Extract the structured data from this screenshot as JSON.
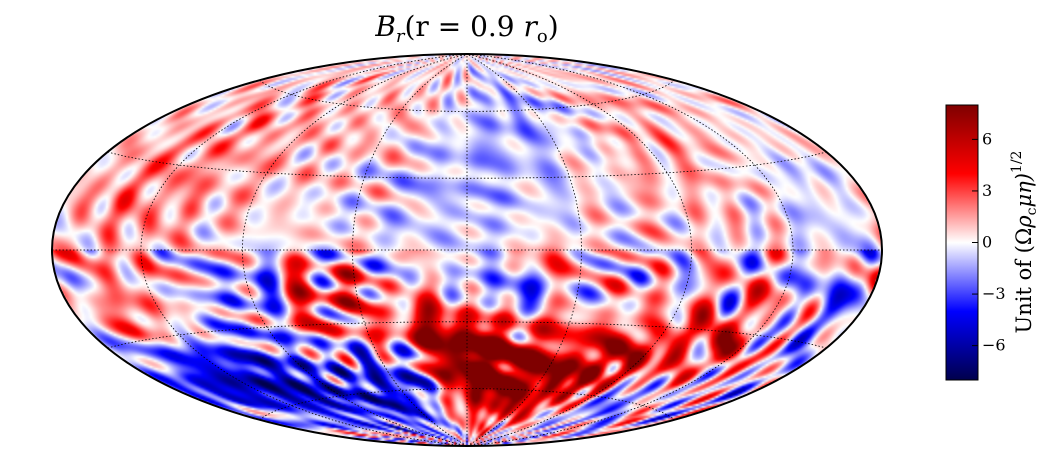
{
  "chart_data": {
    "type": "heatmap",
    "projection": "Hammer-Aitoff (all-sky)",
    "title": "B_r(r = 0.9 r_o)",
    "title_parts": {
      "main": "B",
      "sub": "r",
      "expr": "(r = 0.9 ",
      "rvar": "r",
      "rsub": "o",
      "close": ")"
    },
    "colormap": "seismic (blue-white-red)",
    "colormap_stops": [
      "#00004c",
      "#0000ff",
      "#ffffff",
      "#ff0000",
      "#7f0000"
    ],
    "colorbar": {
      "ticks": [
        6,
        3,
        0,
        -3,
        -6
      ],
      "tick_labels": [
        "6",
        "3",
        "0",
        "−3",
        "−6"
      ],
      "range": [
        -8,
        8
      ],
      "label": "Unit of (Ωρcμη)^1/2",
      "label_parts": {
        "unit": "Unit of (",
        "omega": "Ω",
        "rho": "ρ",
        "rho_sub": "c",
        "mueta": "μη)",
        "power": "1/2"
      }
    },
    "grid": true,
    "grid_style": "dotted",
    "meridians_deg": [
      -135,
      -90,
      -45,
      0,
      45,
      90,
      135
    ],
    "parallels_deg": [
      -60,
      -30,
      0,
      30,
      60
    ],
    "field_features": [
      {
        "lon": 0,
        "lat": -45,
        "value": 7,
        "sigma": 12
      },
      {
        "lon": 15,
        "lat": -55,
        "value": 6,
        "sigma": 14
      },
      {
        "lon": 45,
        "lat": -55,
        "value": 6.5,
        "sigma": 15
      },
      {
        "lon": 80,
        "lat": -45,
        "value": 5.5,
        "sigma": 12
      },
      {
        "lon": 120,
        "lat": -35,
        "value": 4.5,
        "sigma": 12
      },
      {
        "lon": -20,
        "lat": -35,
        "value": 5,
        "sigma": 10
      },
      {
        "lon": -60,
        "lat": -20,
        "value": 4,
        "sigma": 10
      },
      {
        "lon": -150,
        "lat": -25,
        "value": 4,
        "sigma": 10
      },
      {
        "lon": -110,
        "lat": -55,
        "value": -6.5,
        "sigma": 14
      },
      {
        "lon": -150,
        "lat": -45,
        "value": -6,
        "sigma": 12
      },
      {
        "lon": -60,
        "lat": -65,
        "value": -5.5,
        "sigma": 12
      },
      {
        "lon": -30,
        "lat": -50,
        "value": -4.5,
        "sigma": 10
      },
      {
        "lon": 20,
        "lat": -15,
        "value": -4,
        "sigma": 8
      },
      {
        "lon": 110,
        "lat": -60,
        "value": -3.5,
        "sigma": 10
      },
      {
        "lon": -90,
        "lat": -15,
        "value": -3,
        "sigma": 8
      },
      {
        "lon": 30,
        "lat": -5,
        "value": 4.5,
        "sigma": 6
      },
      {
        "lon": 160,
        "lat": -20,
        "value": -2.5,
        "sigma": 9
      },
      {
        "lon": -120,
        "lat": 40,
        "value": 1.8,
        "sigma": 25
      },
      {
        "lon": 100,
        "lat": 40,
        "value": 1.6,
        "sigma": 25
      },
      {
        "lon": 0,
        "lat": 35,
        "value": -1.6,
        "sigma": 22
      },
      {
        "lon": 40,
        "lat": 60,
        "value": -1.5,
        "sigma": 15
      },
      {
        "lon": -40,
        "lat": 55,
        "value": 1.4,
        "sigma": 18
      },
      {
        "lon": 150,
        "lat": 20,
        "value": -1.2,
        "sigma": 15
      },
      {
        "lon": -150,
        "lat": 15,
        "value": 1.5,
        "sigma": 15
      }
    ]
  }
}
